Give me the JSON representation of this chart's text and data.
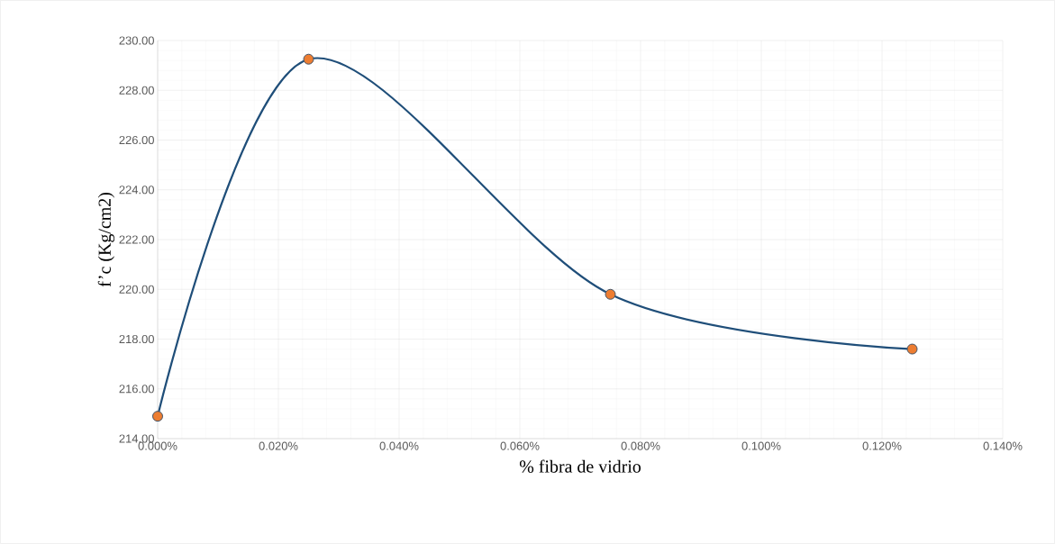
{
  "chart_data": {
    "type": "line",
    "xlabel": "% fibra de vidrio",
    "ylabel": "f’c (Kg/cm2)",
    "x": [
      0,
      0.025,
      0.075,
      0.125
    ],
    "series": [
      {
        "color": "#1f4e79",
        "colors": [
          "#ed7d31",
          "#ed7d31",
          "#ed7d31",
          "#ed7d31"
        ],
        "values": [
          214.9,
          229.25,
          219.8,
          217.6
        ]
      }
    ],
    "xlim": [
      0,
      0.14
    ],
    "xticks": [
      {
        "value": 0,
        "label": "0.000%"
      },
      {
        "value": 0.02,
        "label": "0.020%"
      },
      {
        "value": 0.04,
        "label": "0.040%"
      },
      {
        "value": 0.06,
        "label": "0.060%"
      },
      {
        "value": 0.08,
        "label": "0.080%"
      },
      {
        "value": 0.1,
        "label": "0.100%"
      },
      {
        "value": 0.12,
        "label": "0.120%"
      },
      {
        "value": 0.14,
        "label": "0.140%"
      }
    ],
    "ylim": [
      214,
      230
    ],
    "yticks": [
      {
        "value": 214,
        "label": "214.00"
      },
      {
        "value": 216,
        "label": "216.00"
      },
      {
        "value": 218,
        "label": "218.00"
      },
      {
        "value": 220,
        "label": "220.00"
      },
      {
        "value": 222,
        "label": "222.00"
      },
      {
        "value": 224,
        "label": "224.00"
      },
      {
        "value": 226,
        "label": "226.00"
      },
      {
        "value": 228,
        "label": "228.00"
      },
      {
        "value": 230,
        "label": "230.00"
      }
    ],
    "grid": true,
    "marker": "circle",
    "line_style": "solid"
  }
}
